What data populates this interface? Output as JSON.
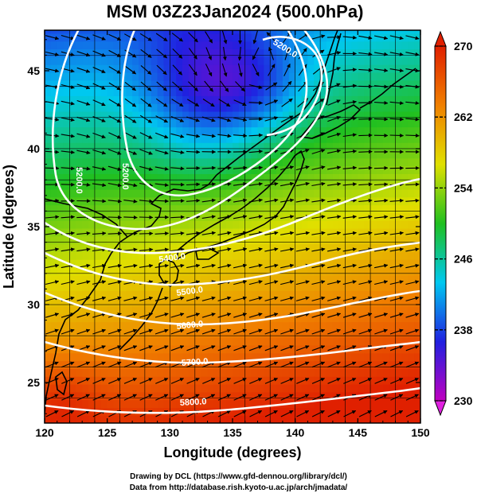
{
  "chart_data": {
    "type": "heatmap",
    "title": "MSM 03Z23Jan2024 (500.0hPa)",
    "xlabel": "Longitude (degrees)",
    "ylabel": "Latitude  (degrees)",
    "xlim": [
      120,
      150
    ],
    "ylim": [
      22.4,
      47.6
    ],
    "x_ticks": [
      "120",
      "125",
      "130",
      "135",
      "140",
      "145",
      "150"
    ],
    "y_ticks": [
      "25",
      "30",
      "35",
      "40",
      "45"
    ],
    "colorbar": {
      "range": [
        230,
        270
      ],
      "tick_labels": [
        "230",
        "238",
        "246",
        "254",
        "262",
        "270"
      ],
      "colors": [
        "#c000c0",
        "#2020e0",
        "#00c8f0",
        "#20c020",
        "#e0e000",
        "#f08000",
        "#e02000"
      ]
    },
    "contour_labels": [
      "5200.0",
      "5200.0",
      "5200.0",
      "5400.0",
      "5500.0",
      "5600.0",
      "5700.0",
      "5800.0"
    ],
    "streamline_color": "#000000",
    "contour_color": "#ffffff"
  },
  "credits": {
    "line1": "Drawing by DCL (https://www.gfd-dennou.org/library/dcl/)",
    "line2": "Data from http://database.rish.kyoto-u.ac.jp/arch/jmadata/"
  }
}
